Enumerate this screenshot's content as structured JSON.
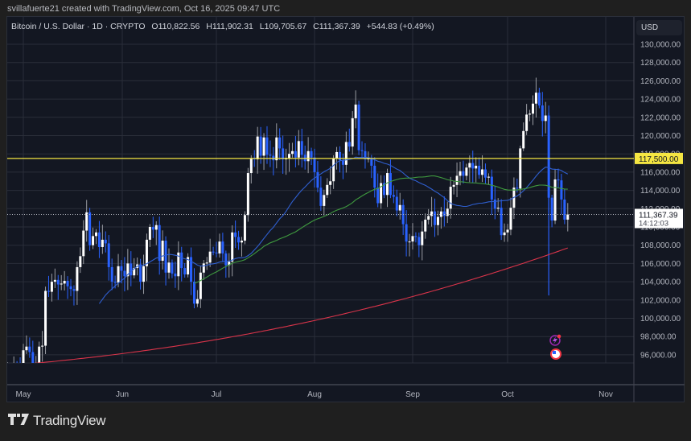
{
  "credit": "svillafuerte21 created with TradingView.com, Oct 16, 2025 09:47 UTC",
  "legend": {
    "symbol": "Bitcoin / U.S. Dollar · 1D · CRYPTO",
    "open": "O110,822.56",
    "high": "H111,902.31",
    "low": "L109,705.67",
    "close": "C111,367.39",
    "change": "+544.83 (+0.49%)"
  },
  "price_axis": {
    "currency": "USD",
    "ticks": [
      "130,000.00",
      "128,000.00",
      "126,000.00",
      "124,000.00",
      "122,000.00",
      "120,000.00",
      "118,000.00",
      "116,000.00",
      "114,000.00",
      "112,000.00",
      "110,000.00",
      "108,000.00",
      "106,000.00",
      "104,000.00",
      "102,000.00",
      "100,000.00",
      "98,000.00",
      "96,000.00"
    ],
    "level_label": "117,500.00",
    "last_price_label": "111,367.39",
    "countdown": "14:12:03"
  },
  "time_axis": {
    "labels": [
      "May",
      "Jun",
      "Jul",
      "Aug",
      "Sep",
      "Oct",
      "Nov"
    ]
  },
  "branding": {
    "logo_mark": "TV",
    "logo_text": "TradingView"
  },
  "colors": {
    "background": "#131722",
    "up_candle": "#ffffff",
    "down_candle": "#2962ff",
    "ma_short": "#2f5fd0",
    "ma_mid": "#3f9a3f",
    "ma_long": "#d9344a",
    "level_line": "#f5e642",
    "grid": "#2a2e39"
  },
  "chart_data": {
    "type": "candlestick",
    "title": "Bitcoin / U.S. Dollar · 1D · CRYPTO",
    "xlabel": "",
    "ylabel": "USD",
    "ylim": [
      94500,
      131500
    ],
    "grid": true,
    "x_tick_labels": [
      "May",
      "Jun",
      "Jul",
      "Aug",
      "Sep",
      "Oct",
      "Nov"
    ],
    "horizontal_level": 117500,
    "last_price": 111367.39,
    "start_date": "2025-04-26",
    "closes": [
      94200,
      94300,
      94900,
      94600,
      94200,
      96500,
      96900,
      96300,
      94300,
      94800,
      96900,
      97000,
      103000,
      102900,
      104000,
      104200,
      103700,
      103800,
      104100,
      103500,
      103200,
      103000,
      105600,
      106800,
      109600,
      111600,
      108000,
      109000,
      109400,
      107800,
      108600,
      108200,
      105600,
      104000,
      103900,
      105700,
      105200,
      104600,
      106000,
      104700,
      105500,
      105900,
      104000,
      105700,
      108600,
      110000,
      109700,
      110200,
      106300,
      108500,
      105000,
      106100,
      104900,
      104600,
      107200,
      105500,
      104800,
      106700,
      104000,
      101600,
      102100,
      105000,
      106000,
      106100,
      107300,
      107200,
      107100,
      108400,
      107100,
      105800,
      106200,
      109400,
      108900,
      108300,
      108500,
      111300,
      115900,
      117500,
      117400,
      119900,
      117800,
      119800,
      117900,
      117800,
      117300,
      119800,
      118600,
      117400,
      117500,
      118000,
      118300,
      117600,
      119400,
      117900,
      117200,
      118300,
      117600,
      116000,
      114300,
      112300,
      113500,
      114600,
      115000,
      117500,
      118200,
      117300,
      116800,
      119300,
      118800,
      121900,
      123400,
      118400,
      118300,
      117400,
      117500,
      116700,
      114300,
      112600,
      114800,
      113500,
      115900,
      113500,
      113300,
      111800,
      112400,
      110300,
      108400,
      108400,
      109000,
      108900,
      108000,
      109500,
      110800,
      111200,
      111700,
      110200,
      111100,
      111700,
      111200,
      112000,
      114400,
      114600,
      115600,
      116100,
      115600,
      116500,
      117000,
      116400,
      116700,
      115700,
      116300,
      115400,
      115500,
      113000,
      112000,
      112100,
      109100,
      109400,
      109700,
      112100,
      114300,
      114200,
      118600,
      120500,
      122300,
      122400,
      123500,
      124700,
      123300,
      121600,
      122200,
      113200,
      110700,
      115200,
      115100,
      113000,
      110800,
      111367
    ],
    "ma_short_period": 50,
    "ma_mid_period": 100,
    "ma_long_period": 200,
    "ma_long_points": [
      [
        0,
        0
      ]
    ],
    "series_note": "OHLC derived: open = previous close, high/low wicks estimated"
  }
}
